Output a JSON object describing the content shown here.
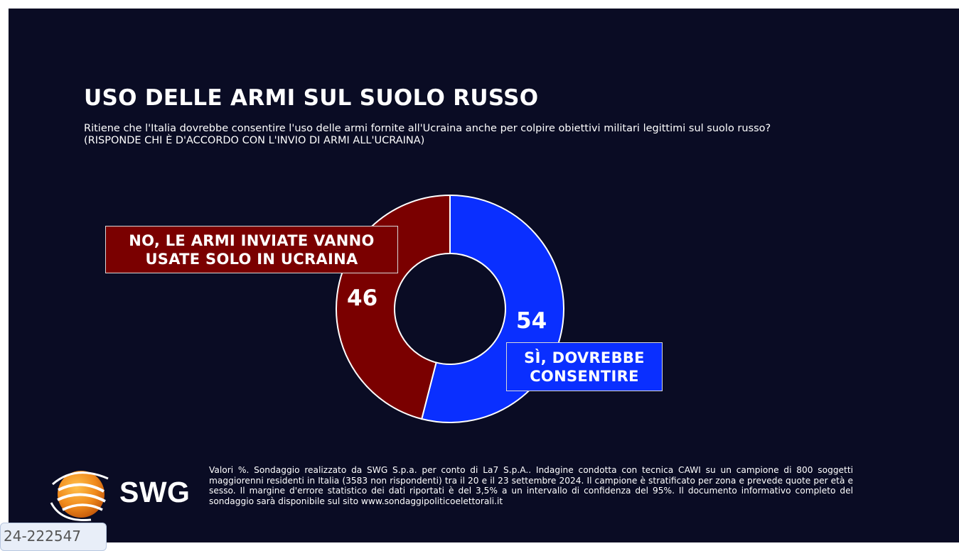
{
  "header": {
    "title": "USO DELLE ARMI SUL SUOLO RUSSO",
    "subtitle": "Ritiene che l'Italia dovrebbe consentire l'uso delle armi fornite all'Ucraina anche per colpire obiettivi militari legittimi sul suolo russo? (RISPONDE CHI È D'ACCORDO CON L'INVIO DI ARMI ALL'UCRAINA)"
  },
  "chart_data": {
    "type": "pie",
    "variant": "donut",
    "title": "USO DELLE ARMI SUL SUOLO RUSSO",
    "unit": "%",
    "slices": [
      {
        "name": "SÌ, DOVREBBE CONSENTIRE",
        "value": 54,
        "color": "#0a2fff"
      },
      {
        "name": "NO, LE ARMI INVIATE VANNO USATE SOLO IN UCRAINA",
        "value": 46,
        "color": "#7a0000"
      }
    ],
    "labels": {
      "yes_display": "SÌ, DOVREBBE\nCONSENTIRE",
      "no_display": "NO, LE ARMI INVIATE VANNO\nUSATE SOLO IN UCRAINA",
      "yes_value": "54",
      "no_value": "46"
    }
  },
  "logo": {
    "text": "SWG",
    "icon": "swg-globe-logo-icon"
  },
  "footer": {
    "note": "Valori %. Sondaggio realizzato da SWG S.p.a. per conto di La7 S.p.A.. Indagine condotta con tecnica CAWI su un campione di 800 soggetti maggiorenni residenti in Italia (3583 non rispondenti) tra il 20 e il 23 settembre 2024. Il campione è stratificato per zona e prevede quote per età e sesso. Il margine d'errore statistico dei dati riportati è del 3,5% a un intervallo di confidenza del 95%. Il documento informativo completo del sondaggio sarà disponibile sul sito www.sondaggipoliticoelettorali.it"
  },
  "tab_badge": {
    "text": "24-222547"
  },
  "colors": {
    "background": "#0a0c24",
    "yes": "#0a2fff",
    "no": "#7a0000",
    "logo_orange": "#f08a1c"
  }
}
